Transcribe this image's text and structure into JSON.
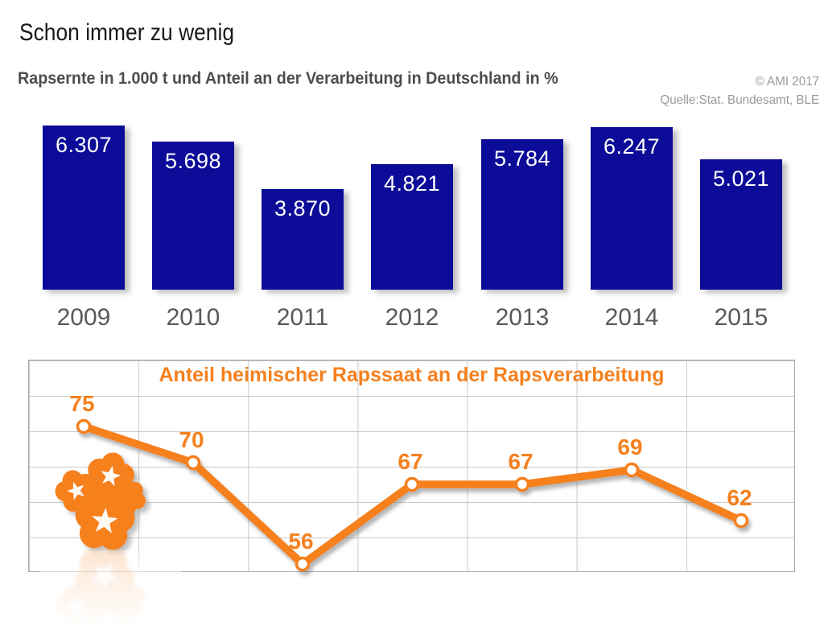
{
  "header": {
    "title": "Schon immer zu wenig",
    "subtitle": "Rapsernte in 1.000 t und Anteil an der Verarbeitung in Deutschland in %",
    "copyright": "© AMI 2017",
    "source": "Quelle:Stat. Bundesamt, BLE"
  },
  "colors": {
    "bar_blue": "#0c0c99",
    "accent_orange": "#f5801e",
    "value_label_white": "#ffffff",
    "year_label_gray": "#595959",
    "grid_line_gray": "#c9c9c9",
    "grid_border_gray": "#a8a8a8",
    "credit_gray": "#9a9a9a",
    "background": "#ffffff"
  },
  "chart_data": [
    {
      "type": "bar",
      "categories": [
        "2009",
        "2010",
        "2011",
        "2012",
        "2013",
        "2014",
        "2015"
      ],
      "values": [
        6307,
        5698,
        3870,
        4821,
        5784,
        6247,
        5021
      ],
      "value_labels": [
        "6.307",
        "5.698",
        "3.870",
        "4.821",
        "5.784",
        "6.247",
        "5.021"
      ],
      "ylabel": "Rapsernte in 1.000 t",
      "ylim": [
        0,
        6500
      ],
      "grid": false,
      "legend": "none",
      "bar_color": "#0c0c99",
      "label_color": "#ffffff"
    },
    {
      "type": "line",
      "title": "Anteil heimischer Rapssaat an der Rapsverarbeitung",
      "categories": [
        "2009",
        "2010",
        "2011",
        "2012",
        "2013",
        "2014",
        "2015"
      ],
      "values": [
        75,
        70,
        56,
        67,
        67,
        69,
        62
      ],
      "value_labels": [
        "75",
        "70",
        "56",
        "67",
        "67",
        "69",
        "62"
      ],
      "ylabel": "Anteil an der Verarbeitung in %",
      "ylim": [
        55,
        84
      ],
      "grid": true,
      "legend": "none",
      "line_color": "#f5801e",
      "marker": "white-circle-orange-ring"
    }
  ]
}
